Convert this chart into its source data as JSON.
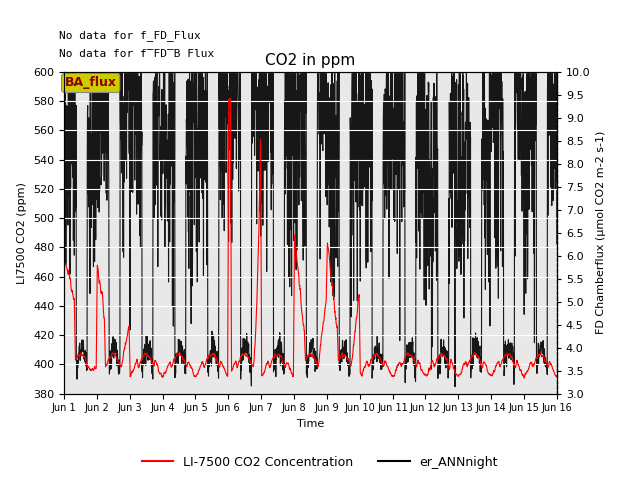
{
  "title": "CO2 in ppm",
  "xlabel": "Time",
  "ylabel_left": "LI7500 CO2 (ppm)",
  "ylabel_right": "FD Chamberflux (μmol CO2 m-2 s-1)",
  "ylim_left": [
    380,
    600
  ],
  "ylim_right": [
    3.0,
    10.0
  ],
  "no_data_line1": "No data for f_FD_Flux",
  "no_data_line2": "No data for f̅FD̅B Flux",
  "ba_flux_label": "BA_flux",
  "legend_labels": [
    "LI-7500 CO2 Concentration",
    "er_ANNnight"
  ],
  "line1_color": "red",
  "line2_color": "black",
  "xtick_labels": [
    "Jun 1",
    "Jun 2",
    "Jun 3",
    "Jun 4",
    "Jun 5",
    "Jun 6",
    "Jun 7",
    "Jun 8",
    "Jun 9",
    "Jun 10",
    "Jun 11",
    "Jun 12",
    "Jun 13",
    "Jun 14",
    "Jun 15",
    "Jun 16"
  ],
  "xtick_positions": [
    1,
    2,
    3,
    4,
    5,
    6,
    7,
    8,
    9,
    10,
    11,
    12,
    13,
    14,
    15,
    16
  ],
  "left_ticks": [
    380,
    400,
    420,
    440,
    460,
    480,
    500,
    520,
    540,
    560,
    580,
    600
  ],
  "right_ticks": [
    3.0,
    3.5,
    4.0,
    4.5,
    5.0,
    5.5,
    6.0,
    6.5,
    7.0,
    7.5,
    8.0,
    8.5,
    9.0,
    9.5,
    10.0
  ],
  "bg_color": "#e8e8e8",
  "fig_bg": "white",
  "grid_color": "white",
  "linewidth": 0.8,
  "title_fontsize": 11,
  "label_fontsize": 8,
  "tick_fontsize": 8,
  "legend_fontsize": 9
}
